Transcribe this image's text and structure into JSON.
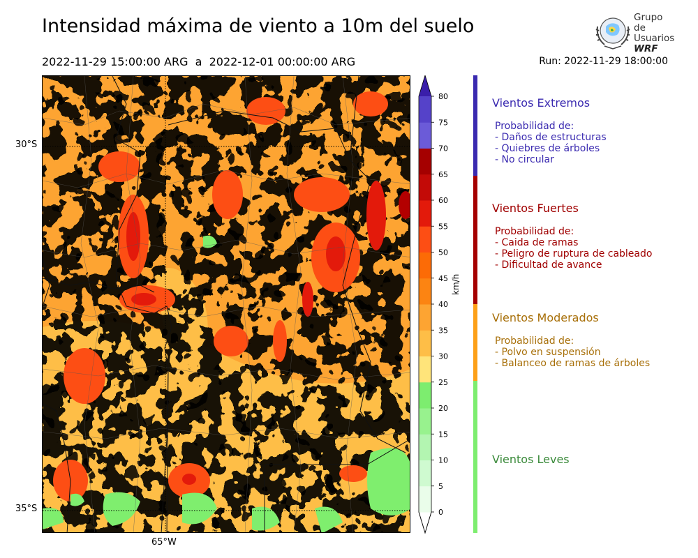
{
  "title": "Intensidad máxima de viento a 10m del suelo",
  "period": "2022-11-29 15:00:00 ARG  a  2022-12-01 00:00:00 ARG",
  "run": "Run: 2022-11-29 18:00:00",
  "logo": {
    "line1": "Grupo de",
    "line2": "Usuarios",
    "line3": "WRF"
  },
  "map": {
    "lat_labels": [
      "30°S",
      "35°S"
    ],
    "lon_labels": [
      "65°W"
    ],
    "colors": {
      "orange_dark": "#fc6b06",
      "orange": "#fda432",
      "yellow_orange": "#febe47",
      "yellow": "#ffe47a",
      "red_orange": "#fd4e14",
      "red": "#e31a0b",
      "dark_red": "#b30000",
      "green": "#7fee6e"
    }
  },
  "colorbar": {
    "unit": "km/h",
    "ticks": [
      "0",
      "5",
      "10",
      "15",
      "20",
      "25",
      "30",
      "35",
      "40",
      "45",
      "50",
      "55",
      "60",
      "65",
      "70",
      "75",
      "80"
    ],
    "colors": [
      "#eafdea",
      "#cffad0",
      "#b3f5b1",
      "#98f28e",
      "#7ded6f",
      "#ffe47a",
      "#febe47",
      "#fda432",
      "#fc8412",
      "#fc6b06",
      "#fd4e14",
      "#e31a0b",
      "#c30a07",
      "#a50000",
      "#6b5bd8",
      "#5542c9",
      "#3e27b6"
    ],
    "extend_top_color": "#3a1eaa"
  },
  "categories": [
    {
      "title": "Vientos Extremos",
      "color": "#3a2ab0",
      "prob": "Probabilidad de:",
      "items": [
        "- Daños de estructuras",
        "- Quiebres de árboles",
        "- No circular"
      ]
    },
    {
      "title": "Vientos Fuertes",
      "color": "#a00000",
      "prob": "Probabilidad de:",
      "items": [
        "- Caida de ramas",
        "- Peligro de ruptura de cableado",
        "- Dificultad de avance"
      ]
    },
    {
      "title": "Vientos Moderados",
      "color": "#a8700a",
      "prob": "Probabilidad de:",
      "items": [
        "- Polvo en suspensión",
        "- Balanceo de ramas de árboles"
      ]
    },
    {
      "title": "Vientos Leves",
      "color": "#3a8a3a",
      "prob": "",
      "items": []
    }
  ]
}
